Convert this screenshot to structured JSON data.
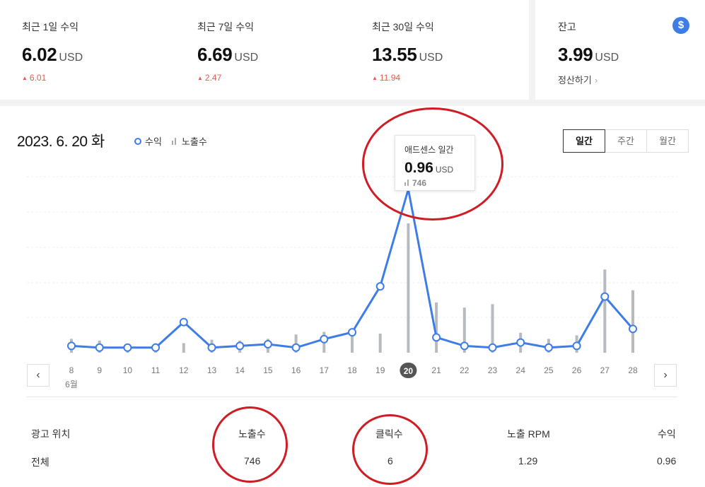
{
  "summary": [
    {
      "label": "최근 1일 수익",
      "value": "6.02",
      "unit": "USD",
      "change": "6.01"
    },
    {
      "label": "최근 7일 수익",
      "value": "6.69",
      "unit": "USD",
      "change": "2.47"
    },
    {
      "label": "최근 30일 수익",
      "value": "13.55",
      "unit": "USD",
      "change": "11.94"
    }
  ],
  "balance": {
    "label": "잔고",
    "value": "3.99",
    "unit": "USD",
    "settle_label": "정산하기",
    "icon": "dollar-icon"
  },
  "date_title": "2023. 6. 20 화",
  "legend": {
    "revenue": "수익",
    "impressions": "노출수"
  },
  "period_tabs": [
    "일간",
    "주간",
    "월간"
  ],
  "active_period": "일간",
  "tooltip": {
    "label": "애드센스 일간",
    "value": "0.96",
    "unit": "USD",
    "impressions": "746"
  },
  "colors": {
    "line": "#3e7ce6",
    "bar": "#b7bbc0",
    "accent": "#d01c25"
  },
  "chart_data": {
    "type": "line",
    "x": [
      "8",
      "9",
      "10",
      "11",
      "12",
      "13",
      "14",
      "15",
      "16",
      "17",
      "18",
      "19",
      "20",
      "21",
      "22",
      "23",
      "24",
      "25",
      "26",
      "27",
      "28"
    ],
    "month_label": "6월",
    "selected_x": "20",
    "series": [
      {
        "name": "수익",
        "type": "line",
        "values": [
          0.04,
          0.03,
          0.03,
          0.03,
          0.18,
          0.03,
          0.04,
          0.05,
          0.03,
          0.08,
          0.12,
          0.39,
          0.96,
          0.09,
          0.04,
          0.03,
          0.06,
          0.03,
          0.04,
          0.33,
          0.14
        ]
      },
      {
        "name": "노출수",
        "type": "bar",
        "values": [
          80,
          70,
          45,
          55,
          55,
          75,
          70,
          80,
          105,
          120,
          95,
          110,
          746,
          290,
          260,
          280,
          115,
          80,
          100,
          480,
          360
        ]
      }
    ],
    "grid": true,
    "legend_position": "top-left"
  },
  "table": {
    "headers": [
      "광고 위치",
      "노출수",
      "클릭수",
      "노출 RPM",
      "수익"
    ],
    "rows": [
      [
        "전체",
        "746",
        "6",
        "1.29",
        "0.96"
      ]
    ]
  }
}
